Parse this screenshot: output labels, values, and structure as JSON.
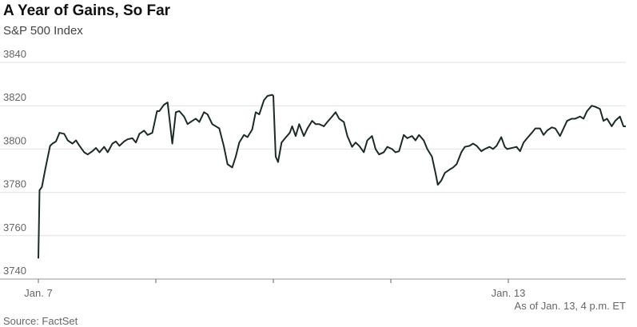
{
  "chart_data": {
    "type": "line",
    "title": "A Year of Gains, So Far",
    "subtitle": "S&P 500 Index",
    "note": "As of Jan. 13, 4 p.m. ET",
    "source": "Source: FactSet",
    "grid": true,
    "xlim": [
      0,
      5
    ],
    "xticks": [
      {
        "value": 0,
        "label": "Jan. 7"
      },
      {
        "value": 1,
        "label": null
      },
      {
        "value": 2,
        "label": null
      },
      {
        "value": 3,
        "label": null
      },
      {
        "value": 4,
        "label": "Jan. 13"
      }
    ],
    "ylim": [
      3740,
      3840
    ],
    "yticks": [
      3740,
      3760,
      3780,
      3800,
      3820,
      3840
    ],
    "x": [
      0,
      0.01,
      0.03,
      0.06,
      0.1,
      0.12,
      0.15,
      0.18,
      0.22,
      0.25,
      0.29,
      0.32,
      0.35,
      0.39,
      0.42,
      0.46,
      0.49,
      0.52,
      0.56,
      0.59,
      0.63,
      0.66,
      0.69,
      0.73,
      0.76,
      0.8,
      0.83,
      0.86,
      0.9,
      0.93,
      0.97,
      1.01,
      1.03,
      1.07,
      1.1,
      1.14,
      1.17,
      1.2,
      1.24,
      1.27,
      1.31,
      1.34,
      1.37,
      1.41,
      1.44,
      1.48,
      1.51,
      1.54,
      1.58,
      1.61,
      1.65,
      1.68,
      1.71,
      1.75,
      1.78,
      1.82,
      1.85,
      1.88,
      1.92,
      1.95,
      1.99,
      2.0,
      2.02,
      2.04,
      2.07,
      2.1,
      2.14,
      2.16,
      2.19,
      2.22,
      2.26,
      2.29,
      2.33,
      2.36,
      2.39,
      2.43,
      2.46,
      2.5,
      2.53,
      2.56,
      2.6,
      2.63,
      2.67,
      2.7,
      2.73,
      2.77,
      2.8,
      2.84,
      2.87,
      2.9,
      2.94,
      2.97,
      3.01,
      3.04,
      3.07,
      3.11,
      3.14,
      3.18,
      3.21,
      3.24,
      3.28,
      3.31,
      3.35,
      3.38,
      3.4,
      3.43,
      3.46,
      3.5,
      3.53,
      3.56,
      3.6,
      3.63,
      3.67,
      3.7,
      3.73,
      3.77,
      3.8,
      3.84,
      3.87,
      3.9,
      3.94,
      3.97,
      3.99,
      4.03,
      4.07,
      4.1,
      4.13,
      4.16,
      4.2,
      4.23,
      4.27,
      4.3,
      4.33,
      4.37,
      4.4,
      4.44,
      4.47,
      4.5,
      4.54,
      4.57,
      4.61,
      4.64,
      4.67,
      4.71,
      4.74,
      4.78,
      4.81,
      4.84,
      4.88,
      4.91,
      4.95,
      4.98,
      5.0
    ],
    "series": [
      {
        "name": "S&P 500",
        "color": "#1c2b27",
        "values": [
          3749.5,
          3781,
          3782.5,
          3791,
          3801.5,
          3802.5,
          3803.5,
          3807.5,
          3807,
          3804,
          3802.5,
          3804,
          3801.5,
          3798.5,
          3797.5,
          3799,
          3800.5,
          3798.5,
          3801,
          3798.5,
          3802.5,
          3803.5,
          3801.5,
          3803.5,
          3804.5,
          3805,
          3803,
          3807,
          3808.5,
          3806.5,
          3807.5,
          3817.5,
          3817.5,
          3820.5,
          3821.5,
          3802.5,
          3817,
          3817.5,
          3815,
          3811.5,
          3813,
          3814,
          3812.5,
          3817,
          3816,
          3811.5,
          3810.5,
          3809.5,
          3801,
          3793,
          3791.5,
          3796.5,
          3803,
          3806.5,
          3805.5,
          3809,
          3817,
          3816,
          3822.5,
          3824.5,
          3825,
          3824.5,
          3796.5,
          3794,
          3803,
          3805,
          3807.5,
          3810.5,
          3806,
          3811.5,
          3806,
          3809.5,
          3813,
          3811.5,
          3811.5,
          3810.5,
          3812.5,
          3815,
          3817,
          3814,
          3812.5,
          3806,
          3801,
          3803,
          3801.5,
          3798.5,
          3804,
          3806,
          3800,
          3797.5,
          3798.5,
          3801,
          3800,
          3798.5,
          3799,
          3806.5,
          3805,
          3806,
          3804,
          3806.5,
          3804,
          3800,
          3796.5,
          3789,
          3783.5,
          3785.5,
          3789,
          3790.5,
          3791.5,
          3793,
          3798.5,
          3801,
          3801.5,
          3802.5,
          3801.5,
          3799,
          3800,
          3801,
          3800,
          3801.5,
          3805.5,
          3801,
          3800,
          3800.5,
          3801,
          3799,
          3803,
          3805,
          3807.5,
          3809.5,
          3809.5,
          3806.5,
          3808.5,
          3810,
          3809.5,
          3806,
          3809.5,
          3813,
          3814,
          3814,
          3815,
          3814,
          3817.5,
          3820,
          3819.5,
          3818.5,
          3813,
          3814,
          3810.5,
          3813,
          3815,
          3810.5,
          3810.5
        ]
      }
    ]
  }
}
